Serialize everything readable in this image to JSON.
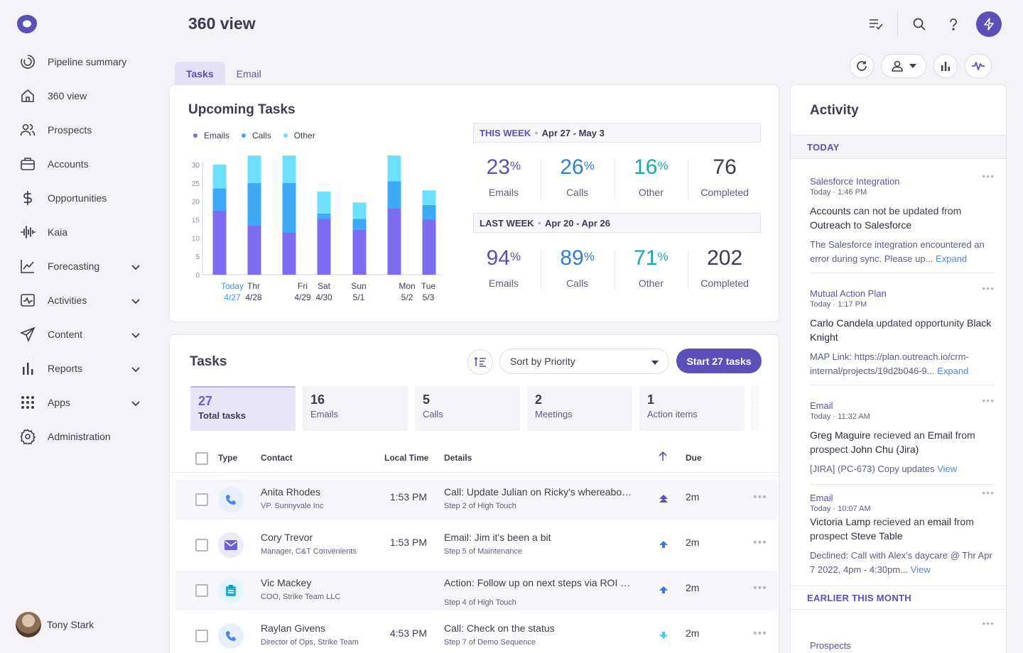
{
  "header": {
    "title": "360 view"
  },
  "sidebar": {
    "items": [
      {
        "label": "Pipeline summary"
      },
      {
        "label": "360 view"
      },
      {
        "label": "Prospects"
      },
      {
        "label": "Accounts"
      },
      {
        "label": "Opportunities"
      },
      {
        "label": "Kaia"
      },
      {
        "label": "Forecasting"
      },
      {
        "label": "Activities"
      },
      {
        "label": "Content"
      },
      {
        "label": "Reports"
      },
      {
        "label": "Apps"
      },
      {
        "label": "Administration"
      }
    ],
    "user": {
      "name": "Tony Stark"
    }
  },
  "tabs": [
    {
      "label": "Tasks"
    },
    {
      "label": "Email"
    }
  ],
  "colors": {
    "brand": "#5b4fb8",
    "emails": "#7c6cf0",
    "calls": "#3ea9f5",
    "other": "#6ee0fb"
  },
  "upcoming": {
    "title": "Upcoming Tasks",
    "legend": [
      "Emails",
      "Calls",
      "Other"
    ],
    "this_week": {
      "label": "THIS WEEK",
      "range": "Apr 27 - May 3",
      "stats": [
        {
          "value": "23",
          "unit": "%",
          "label": "Emails"
        },
        {
          "value": "26",
          "unit": "%",
          "label": "Calls"
        },
        {
          "value": "16",
          "unit": "%",
          "label": "Other"
        },
        {
          "value": "76",
          "unit": "",
          "label": "Completed"
        }
      ]
    },
    "last_week": {
      "label": "LAST WEEK",
      "range": "Apr 20 - Apr 26",
      "stats": [
        {
          "value": "94",
          "unit": "%",
          "label": "Emails"
        },
        {
          "value": "89",
          "unit": "%",
          "label": "Calls"
        },
        {
          "value": "71",
          "unit": "%",
          "label": "Other"
        },
        {
          "value": "202",
          "unit": "",
          "label": "Completed"
        }
      ]
    }
  },
  "chart_data": {
    "type": "bar",
    "stacked": true,
    "title": "Upcoming Tasks",
    "categories": [
      "Today 4/27",
      "Thr 4/28",
      "Fri 4/29",
      "Sat 4/30",
      "Sun 5/1",
      "Mon 5/2",
      "Tue 5/3"
    ],
    "x_labels_day": [
      "Today",
      "Thr",
      "Fri",
      "Sat",
      "Sun",
      "Mon",
      "Tue"
    ],
    "x_labels_date": [
      "4/27",
      "4/28",
      "4/29",
      "4/30",
      "5/1",
      "5/2",
      "5/3"
    ],
    "series": [
      {
        "name": "Emails",
        "values": [
          17.5,
          13.5,
          11.5,
          15.2,
          12.2,
          18,
          15
        ]
      },
      {
        "name": "Calls",
        "values": [
          6,
          11.5,
          13.5,
          1.5,
          3,
          7.5,
          4
        ]
      },
      {
        "name": "Other",
        "values": [
          6.5,
          7.5,
          7.5,
          6,
          4.5,
          7,
          4
        ]
      }
    ],
    "ylim": [
      0,
      30
    ],
    "yticks": [
      0,
      5,
      10,
      15,
      20,
      25,
      30
    ],
    "legend": "top-left"
  },
  "tasks": {
    "title": "Tasks",
    "sort_label": "Sort by ",
    "sort_value": "Priority",
    "start_label": "Start 27 tasks",
    "summary": [
      {
        "num": "27",
        "label": "Total tasks"
      },
      {
        "num": "16",
        "label": "Emails"
      },
      {
        "num": "5",
        "label": "Calls"
      },
      {
        "num": "2",
        "label": "Meetings"
      },
      {
        "num": "1",
        "label": "Action items"
      }
    ],
    "columns": {
      "type": "Type",
      "contact": "Contact",
      "time": "Local Time",
      "details": "Details",
      "due": "Due"
    },
    "rows": [
      {
        "name": "Anita Rhodes",
        "sub": "VP. Sunnyvale Inc",
        "time": "1:53 PM",
        "detail": "Call: Update Julian on Ricky's whereabouts",
        "step": "Step 2 of High Touch",
        "due": "2m",
        "icon": "phone-icon",
        "priority": "double-up"
      },
      {
        "name": "Cory Trevor",
        "sub": "Manager, C&T Convenients",
        "time": "1:53 PM",
        "detail": "Email: Jim it's been a bit",
        "step": "Step 5 of Maintenance",
        "due": "2m",
        "icon": "email-icon",
        "priority": "up"
      },
      {
        "name": "Vic Mackey",
        "sub": "COO, Strike Team LLC",
        "time": "",
        "detail": "Action: Follow up on next steps via ROI calculator",
        "step": "Step 4 of High Touch",
        "due": "2m",
        "icon": "clipboard-icon",
        "priority": "up"
      },
      {
        "name": "Raylan Givens",
        "sub": "Director of Ops, Strike Team",
        "time": "4:53 PM",
        "detail": "Call: Check on the status",
        "step": "Step 7 of Demo Sequence",
        "due": "2m",
        "icon": "phone-icon",
        "priority": "down"
      }
    ]
  },
  "activity": {
    "title": "Activity",
    "today": "TODAY",
    "earlier": "EARLIER THIS MONTH",
    "items": [
      {
        "source": "Salesforce Integration",
        "day": "Today",
        "time": "1:46 PM",
        "head_a": "Accounts",
        "head_b": " can not be updated from ",
        "head_c": "Outreach",
        "head_d": " to ",
        "head_e": "Salesforce",
        "body": "The Salesforce integration encountered an error during sync. Please up...",
        "link": "Expand"
      },
      {
        "source": "Mutual Action Plan",
        "day": "Today",
        "time": "1:17 PM",
        "head_a": "Carlo Candela",
        "head_b": " updated opportunity ",
        "head_c": "Black Knight",
        "head_d": "",
        "head_e": "",
        "body": "MAP Link: https://plan.outreach.io/crm-internal/projects/19d2b046-9...",
        "link": "Expand"
      },
      {
        "source": "Email",
        "day": "Today",
        "time": "11:32 AM",
        "head_a": "Greg Maguire",
        "head_b": " recieved an ",
        "head_c": "Email",
        "head_d": " from prospect ",
        "head_e": "John Chu (Jira)",
        "body": "[JIRA] (PC-673) Copy updates",
        "link": "View"
      },
      {
        "source": "Email",
        "day": "Today",
        "time": "10:07 AM",
        "head_a": "Victoria Lamp",
        "head_b": " recieved an ",
        "head_c": "email",
        "head_d": " from prospect ",
        "head_e": "Steve Table",
        "body": "Declined: Call with Alex's daycare @ Thr Apr 7 2022, 4pm - 4:30pm...",
        "link": "View"
      },
      {
        "source": "Prospects",
        "day": "",
        "time": "",
        "head_a": "",
        "head_b": "",
        "head_c": "",
        "head_d": "",
        "head_e": "",
        "body": "",
        "link": ""
      }
    ]
  }
}
